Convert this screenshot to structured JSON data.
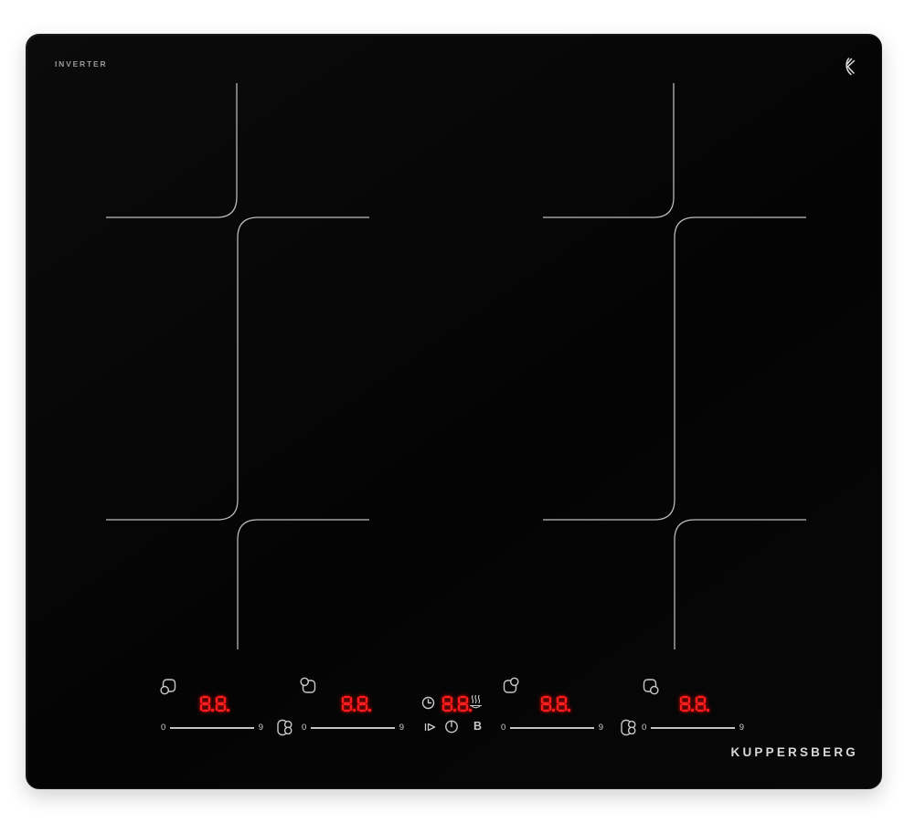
{
  "device": {
    "type_label": "INVERTER",
    "brand_label": "KUPPERSBERG",
    "logo_name": "kuppersberg-k-monogram"
  },
  "colors": {
    "panel_black": "#060606",
    "zone_line_gray": "#bfbfbf",
    "icon_gray": "#c9c9c9",
    "display_red": "#ff2020",
    "label_gray": "#9a9a9a",
    "brand_gray": "#d8d8d8"
  },
  "zones": [
    {
      "position": "front-left",
      "selector_icon": "pan-zone-bottom-left-icon",
      "display": "8.8.",
      "slider_min": "0",
      "slider_max": "9"
    },
    {
      "position": "rear-left",
      "selector_icon": "pan-zone-top-left-icon",
      "display": "8.8.",
      "slider_min": "0",
      "slider_max": "9"
    },
    {
      "position": "rear-right",
      "selector_icon": "pan-zone-top-right-icon",
      "display": "8.8.",
      "slider_min": "0",
      "slider_max": "9"
    },
    {
      "position": "front-right",
      "selector_icon": "pan-zone-bottom-right-icon",
      "display": "8.8.",
      "slider_min": "0",
      "slider_max": "9"
    }
  ],
  "center_controls": {
    "timer_icon": "clock-icon",
    "timer_display": "8.8.",
    "keep_warm_icon": "keep-warm-icon",
    "lock_icon": "key-lock-icon",
    "power_icon": "power-icon",
    "boost_label": "B"
  },
  "bridge_controls": [
    "bridge-zones-left-icon",
    "bridge-zones-right-icon"
  ]
}
